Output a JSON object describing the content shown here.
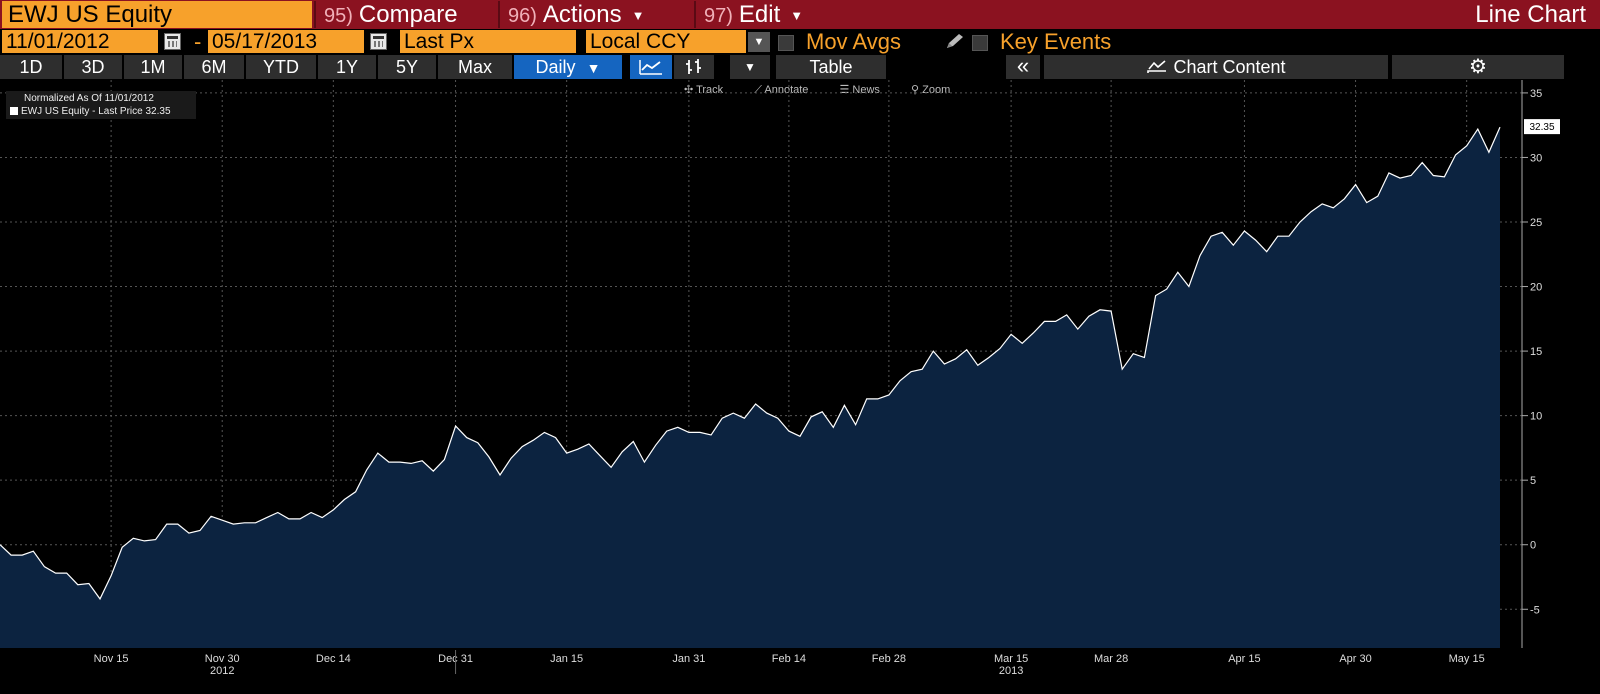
{
  "header": {
    "ticker": "EWJ US Equity",
    "menus": [
      {
        "num": "95)",
        "label": "Compare"
      },
      {
        "num": "96)",
        "label": "Actions"
      },
      {
        "num": "97)",
        "label": "Edit"
      }
    ],
    "chart_type": "Line Chart"
  },
  "controls": {
    "start_date": "11/01/2012",
    "date_separator": "-",
    "end_date": "05/17/2013",
    "field": "Last Px",
    "currency": "Local CCY",
    "mov_avgs_label": "Mov Avgs",
    "key_events_label": "Key Events"
  },
  "toolbar": {
    "ranges": [
      "1D",
      "3D",
      "1M",
      "6M",
      "YTD",
      "1Y",
      "5Y",
      "Max"
    ],
    "frequency": "Daily",
    "table_label": "Table",
    "collapse_label": "«",
    "chart_content_label": "Chart Content"
  },
  "chart_tools": [
    "Track",
    "Annotate",
    "News",
    "Zoom"
  ],
  "legend": {
    "normalized": "Normalized As Of 11/01/2012",
    "series_label": "EWJ US Equity - Last Price 32.35"
  },
  "colors": {
    "accent_orange": "#f7a12b",
    "header_red": "#8b1220",
    "active_blue": "#1565c0",
    "area_fill": "#0c2340",
    "line": "#ffffff"
  },
  "chart_data": {
    "type": "area",
    "ylim": [
      -8,
      36
    ],
    "yticks": [
      -5,
      0,
      5,
      10,
      15,
      20,
      25,
      30,
      35
    ],
    "xticks": [
      "Nov 15",
      "Nov 30",
      "Dec 14",
      "Dec 31",
      "Jan 15",
      "Jan 31",
      "Feb 14",
      "Feb 28",
      "Mar 15",
      "Mar 28",
      "Apr 15",
      "Apr 30",
      "May 15"
    ],
    "year_labels": [
      "2012",
      "2013"
    ],
    "last_value_label": "32.35",
    "grid": true,
    "series": [
      {
        "name": "EWJ US Equity - Last Price",
        "values": [
          0,
          -0.8,
          -0.8,
          -0.5,
          -1.7,
          -2.2,
          -2.2,
          -3.1,
          -3.0,
          -4.2,
          -2.4,
          -0.2,
          0.5,
          0.3,
          0.4,
          1.6,
          1.6,
          0.9,
          1.1,
          2.2,
          1.9,
          1.6,
          1.7,
          1.7,
          2.1,
          2.5,
          2.0,
          2.0,
          2.5,
          2.1,
          2.7,
          3.5,
          4.1,
          5.8,
          7.1,
          6.4,
          6.4,
          6.3,
          6.5,
          5.7,
          6.6,
          9.2,
          8.3,
          7.9,
          6.8,
          5.4,
          6.7,
          7.6,
          8.1,
          8.7,
          8.3,
          7.1,
          7.4,
          7.8,
          6.9,
          6.0,
          7.2,
          8.0,
          6.4,
          7.7,
          8.8,
          9.1,
          8.7,
          8.7,
          8.5,
          9.8,
          10.2,
          9.8,
          10.9,
          10.2,
          9.8,
          8.8,
          8.4,
          9.9,
          10.3,
          9.1,
          10.8,
          9.3,
          11.3,
          11.3,
          11.6,
          12.7,
          13.4,
          13.6,
          15.0,
          14.0,
          14.4,
          15.1,
          13.9,
          14.5,
          15.2,
          16.3,
          15.6,
          16.4,
          17.3,
          17.3,
          17.8,
          16.7,
          17.7,
          18.2,
          18.1,
          13.6,
          14.8,
          14.5,
          19.3,
          19.8,
          21.1,
          20.0,
          22.4,
          23.9,
          24.2,
          23.2,
          24.3,
          23.6,
          22.7,
          23.9,
          23.9,
          25.0,
          25.8,
          26.4,
          26.1,
          26.8,
          27.9,
          26.5,
          27.0,
          28.8,
          28.4,
          28.6,
          29.6,
          28.6,
          28.5,
          30.2,
          30.9,
          32.2,
          30.4,
          32.35
        ]
      }
    ]
  }
}
